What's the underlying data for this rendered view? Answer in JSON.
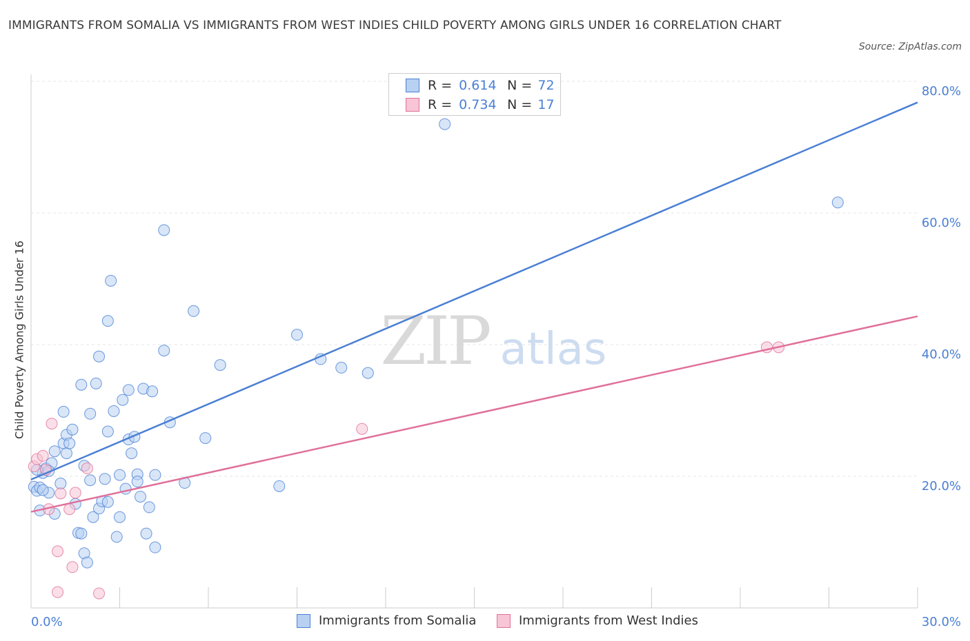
{
  "chart_data": {
    "type": "scatter",
    "title": "IMMIGRANTS FROM SOMALIA VS IMMIGRANTS FROM WEST INDIES CHILD POVERTY AMONG GIRLS UNDER 16 CORRELATION CHART",
    "source": "Source: ZipAtlas.com",
    "ylabel": "Child Poverty Among Girls Under 16",
    "xlabel": "",
    "xlim": [
      0,
      30
    ],
    "ylim": [
      0,
      80
    ],
    "x_tick_labels": [
      {
        "value": 0,
        "label": "0.0%"
      },
      {
        "value": 30,
        "label": "30.0%"
      }
    ],
    "y_tick_labels": [
      {
        "value": 20,
        "label": "20.0%"
      },
      {
        "value": 40,
        "label": "40.0%"
      },
      {
        "value": 60,
        "label": "60.0%"
      },
      {
        "value": 80,
        "label": "80.0%"
      }
    ],
    "watermark": {
      "zip": "ZIP",
      "atlas": "atlas"
    },
    "legend": [
      {
        "r_label": "R =",
        "r_value": "0.614",
        "n_label": "N =",
        "n_value": "72"
      },
      {
        "r_label": "R =",
        "r_value": "0.734",
        "n_label": "N =",
        "n_value": "17"
      }
    ],
    "series": [
      {
        "name": "Immigrants from Somalia",
        "color": "#4a7fd4",
        "fill": "#b8d1f2",
        "trend": [
          [
            0,
            19.5
          ],
          [
            30,
            76.8
          ]
        ],
        "points": [
          [
            0.1,
            18.4
          ],
          [
            0.2,
            17.8
          ],
          [
            0.3,
            14.8
          ],
          [
            0.3,
            18.3
          ],
          [
            0.4,
            20.5
          ],
          [
            0.5,
            21.2
          ],
          [
            0.6,
            17.5
          ],
          [
            0.7,
            22.0
          ],
          [
            0.8,
            23.8
          ],
          [
            0.8,
            14.3
          ],
          [
            1.0,
            18.9
          ],
          [
            1.1,
            25.0
          ],
          [
            1.1,
            29.8
          ],
          [
            1.2,
            23.5
          ],
          [
            1.2,
            26.3
          ],
          [
            1.3,
            25.0
          ],
          [
            1.4,
            27.1
          ],
          [
            1.5,
            15.8
          ],
          [
            1.6,
            11.4
          ],
          [
            1.7,
            11.3
          ],
          [
            1.7,
            33.9
          ],
          [
            1.8,
            8.3
          ],
          [
            1.8,
            21.6
          ],
          [
            1.9,
            6.9
          ],
          [
            2.0,
            29.5
          ],
          [
            2.0,
            19.4
          ],
          [
            2.1,
            13.8
          ],
          [
            2.2,
            34.1
          ],
          [
            2.3,
            15.1
          ],
          [
            2.3,
            38.2
          ],
          [
            2.4,
            16.2
          ],
          [
            2.5,
            19.6
          ],
          [
            2.6,
            16.1
          ],
          [
            2.6,
            43.6
          ],
          [
            2.6,
            26.8
          ],
          [
            2.7,
            49.7
          ],
          [
            2.8,
            29.9
          ],
          [
            2.9,
            10.8
          ],
          [
            3.0,
            13.8
          ],
          [
            3.0,
            20.2
          ],
          [
            3.1,
            31.6
          ],
          [
            3.2,
            18.1
          ],
          [
            3.3,
            33.1
          ],
          [
            3.3,
            25.6
          ],
          [
            3.4,
            23.5
          ],
          [
            3.5,
            26.0
          ],
          [
            3.6,
            20.3
          ],
          [
            3.6,
            19.2
          ],
          [
            3.7,
            16.9
          ],
          [
            3.8,
            33.3
          ],
          [
            3.9,
            11.3
          ],
          [
            4.0,
            15.3
          ],
          [
            4.1,
            32.9
          ],
          [
            4.2,
            20.2
          ],
          [
            4.2,
            9.2
          ],
          [
            4.5,
            57.4
          ],
          [
            4.5,
            39.1
          ],
          [
            4.7,
            28.2
          ],
          [
            5.2,
            19.0
          ],
          [
            5.5,
            45.1
          ],
          [
            5.9,
            25.8
          ],
          [
            6.4,
            36.9
          ],
          [
            8.4,
            18.5
          ],
          [
            9.0,
            41.5
          ],
          [
            9.8,
            37.8
          ],
          [
            10.5,
            36.5
          ],
          [
            11.4,
            35.7
          ],
          [
            14.0,
            73.5
          ],
          [
            27.3,
            61.6
          ],
          [
            0.2,
            21.0
          ],
          [
            0.4,
            17.9
          ],
          [
            0.6,
            20.8
          ]
        ]
      },
      {
        "name": "Immigrants from West Indies",
        "color": "#e0709a",
        "fill": "#f7c5d5",
        "trend": [
          [
            0,
            14.6
          ],
          [
            30,
            44.3
          ]
        ],
        "points": [
          [
            0.1,
            21.5
          ],
          [
            0.2,
            22.6
          ],
          [
            0.4,
            23.1
          ],
          [
            0.5,
            21.0
          ],
          [
            0.6,
            15.0
          ],
          [
            0.7,
            28.0
          ],
          [
            0.9,
            8.6
          ],
          [
            0.9,
            2.4
          ],
          [
            1.0,
            17.4
          ],
          [
            1.3,
            15.0
          ],
          [
            1.4,
            6.2
          ],
          [
            1.5,
            17.5
          ],
          [
            1.9,
            21.2
          ],
          [
            2.3,
            2.2
          ],
          [
            11.2,
            27.2
          ],
          [
            24.9,
            39.6
          ],
          [
            25.3,
            39.6
          ]
        ]
      }
    ]
  }
}
